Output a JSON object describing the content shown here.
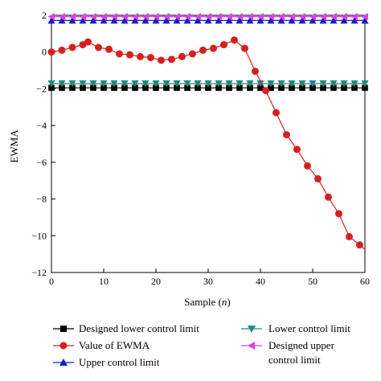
{
  "chart_data": {
    "type": "line",
    "title": "",
    "xlabel_prefix": "Sample (",
    "xlabel_var": "n",
    "xlabel_suffix": ")",
    "ylabel": "EWMA",
    "xlim": [
      0,
      60
    ],
    "ylim": [
      -12,
      2
    ],
    "xticks": [
      0,
      10,
      20,
      30,
      40,
      50,
      60
    ],
    "yticks": [
      2,
      0,
      -2,
      -4,
      -6,
      -8,
      -10,
      -12
    ],
    "grid": false,
    "legend_position": "bottom",
    "series": [
      {
        "name": "Designed lower control limit",
        "color": "#000000",
        "marker": "square",
        "x": [
          0,
          2,
          4,
          6,
          8,
          10,
          12,
          14,
          16,
          18,
          20,
          22,
          24,
          26,
          28,
          30,
          32,
          34,
          36,
          38,
          40,
          42,
          44,
          46,
          48,
          50,
          52,
          54,
          56,
          58,
          60
        ],
        "y": [
          -1.95,
          -1.95,
          -1.95,
          -1.95,
          -1.95,
          -1.95,
          -1.95,
          -1.95,
          -1.95,
          -1.95,
          -1.95,
          -1.95,
          -1.95,
          -1.95,
          -1.95,
          -1.95,
          -1.95,
          -1.95,
          -1.95,
          -1.95,
          -1.95,
          -1.95,
          -1.95,
          -1.95,
          -1.95,
          -1.95,
          -1.95,
          -1.95,
          -1.95,
          -1.95,
          -1.95
        ]
      },
      {
        "name": "Lower control limit",
        "color": "#1f8a84",
        "marker": "triangle-down",
        "x": [
          0,
          2,
          4,
          6,
          8,
          10,
          12,
          14,
          16,
          18,
          20,
          22,
          24,
          26,
          28,
          30,
          32,
          34,
          36,
          38,
          40,
          42,
          44,
          46,
          48,
          50,
          52,
          54,
          56,
          58,
          60
        ],
        "y": [
          -1.72,
          -1.72,
          -1.72,
          -1.72,
          -1.72,
          -1.72,
          -1.72,
          -1.72,
          -1.72,
          -1.72,
          -1.72,
          -1.72,
          -1.72,
          -1.72,
          -1.72,
          -1.72,
          -1.72,
          -1.72,
          -1.72,
          -1.72,
          -1.72,
          -1.72,
          -1.72,
          -1.72,
          -1.72,
          -1.72,
          -1.72,
          -1.72,
          -1.72,
          -1.72,
          -1.72
        ]
      },
      {
        "name": "Value of EWMA",
        "color": "#d62020",
        "marker": "circle",
        "x": [
          0,
          2,
          4,
          6,
          7,
          9,
          11,
          13,
          15,
          17,
          19,
          21,
          23,
          25,
          27,
          29,
          31,
          33,
          35,
          37,
          39,
          41,
          43,
          45,
          47,
          49,
          51,
          53,
          55,
          57,
          59,
          60
        ],
        "y": [
          0.0,
          0.1,
          0.25,
          0.4,
          0.55,
          0.25,
          0.15,
          -0.1,
          -0.15,
          -0.25,
          -0.3,
          -0.45,
          -0.4,
          -0.25,
          -0.1,
          0.1,
          0.2,
          0.4,
          0.65,
          0.2,
          -1.05,
          -2.1,
          -3.3,
          -4.5,
          -5.3,
          -6.2,
          -6.9,
          -7.9,
          -8.8,
          -10.05,
          -10.5,
          -10.75
        ]
      },
      {
        "name": "Upper control limit",
        "color": "#1a1acc",
        "marker": "triangle-up",
        "x": [
          0,
          2,
          4,
          6,
          8,
          10,
          12,
          14,
          16,
          18,
          20,
          22,
          24,
          26,
          28,
          30,
          32,
          34,
          36,
          38,
          40,
          42,
          44,
          46,
          48,
          50,
          52,
          54,
          56,
          58,
          60
        ],
        "y": [
          1.72,
          1.72,
          1.72,
          1.72,
          1.72,
          1.72,
          1.72,
          1.72,
          1.72,
          1.72,
          1.72,
          1.72,
          1.72,
          1.72,
          1.72,
          1.72,
          1.72,
          1.72,
          1.72,
          1.72,
          1.72,
          1.72,
          1.72,
          1.72,
          1.72,
          1.72,
          1.72,
          1.72,
          1.72,
          1.72,
          1.72
        ]
      },
      {
        "name": "Designed upper control limit",
        "color": "#e040e0",
        "marker": "triangle-left",
        "x": [
          0,
          2,
          4,
          6,
          8,
          10,
          12,
          14,
          16,
          18,
          20,
          22,
          24,
          26,
          28,
          30,
          32,
          34,
          36,
          38,
          40,
          42,
          44,
          46,
          48,
          50,
          52,
          54,
          56,
          58,
          60
        ],
        "y": [
          1.93,
          1.93,
          1.93,
          1.93,
          1.93,
          1.93,
          1.93,
          1.93,
          1.93,
          1.93,
          1.93,
          1.93,
          1.93,
          1.93,
          1.93,
          1.93,
          1.93,
          1.93,
          1.93,
          1.93,
          1.93,
          1.93,
          1.93,
          1.93,
          1.93,
          1.93,
          1.93,
          1.93,
          1.93,
          1.93,
          1.93
        ]
      }
    ],
    "legend": {
      "designed_lower": "Designed lower control limit",
      "lower": "Lower control limit",
      "ewma": "Value of EWMA",
      "designed_upper_line1": "Designed upper",
      "designed_upper_line2": "control limit",
      "upper": "Upper control limit"
    }
  }
}
